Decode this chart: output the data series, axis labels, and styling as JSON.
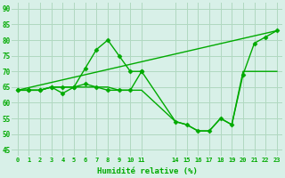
{
  "title": "",
  "xlabel": "Humidité relative (%)",
  "ylabel": "",
  "bg_color": "#d8f0e8",
  "grid_color": "#b0d8c0",
  "line_color": "#00aa00",
  "xlim": [
    -0.5,
    23.5
  ],
  "ylim": [
    43,
    92
  ],
  "yticks": [
    45,
    50,
    55,
    60,
    65,
    70,
    75,
    80,
    85,
    90
  ],
  "xticks": [
    0,
    1,
    2,
    3,
    4,
    5,
    6,
    7,
    8,
    9,
    10,
    11,
    14,
    15,
    16,
    17,
    18,
    19,
    20,
    21,
    22,
    23
  ],
  "xtick_labels": [
    "0",
    "1",
    "2",
    "3",
    "4",
    "5",
    "6",
    "7",
    "8",
    "9",
    "10",
    "11",
    "14",
    "15",
    "16",
    "17",
    "18",
    "19",
    "20",
    "21",
    "22",
    "23"
  ],
  "lines": [
    {
      "x": [
        0,
        1,
        2,
        3,
        4,
        5,
        6,
        7,
        8,
        9,
        10,
        11
      ],
      "y": [
        64,
        64,
        64,
        65,
        63,
        65,
        71,
        77,
        80,
        75,
        70,
        70
      ],
      "marker": "D",
      "markersize": 2.5,
      "linewidth": 1.0,
      "linestyle": "solid"
    },
    {
      "x": [
        0,
        23
      ],
      "y": [
        64,
        83
      ],
      "marker": null,
      "markersize": 0,
      "linewidth": 1.0,
      "linestyle": "solid"
    },
    {
      "x": [
        0,
        1,
        2,
        3,
        4,
        5,
        6,
        7,
        8,
        9,
        10,
        11,
        14,
        15,
        16,
        17,
        18,
        19,
        20,
        21,
        22,
        23
      ],
      "y": [
        64,
        64,
        64,
        65,
        65,
        65,
        66,
        65,
        64,
        64,
        64,
        70,
        54,
        53,
        51,
        51,
        55,
        53,
        69,
        79,
        81,
        83
      ],
      "marker": "D",
      "markersize": 2.5,
      "linewidth": 1.0,
      "linestyle": "solid"
    },
    {
      "x": [
        0,
        1,
        2,
        3,
        4,
        5,
        6,
        7,
        8,
        9,
        10,
        11,
        14,
        15,
        16,
        17,
        18,
        19,
        20,
        21,
        22,
        23
      ],
      "y": [
        64,
        64,
        64,
        65,
        65,
        65,
        65,
        65,
        65,
        64,
        64,
        64,
        54,
        53,
        51,
        51,
        55,
        53,
        70,
        70,
        70,
        70
      ],
      "marker": null,
      "markersize": 0,
      "linewidth": 1.0,
      "linestyle": "solid"
    }
  ]
}
